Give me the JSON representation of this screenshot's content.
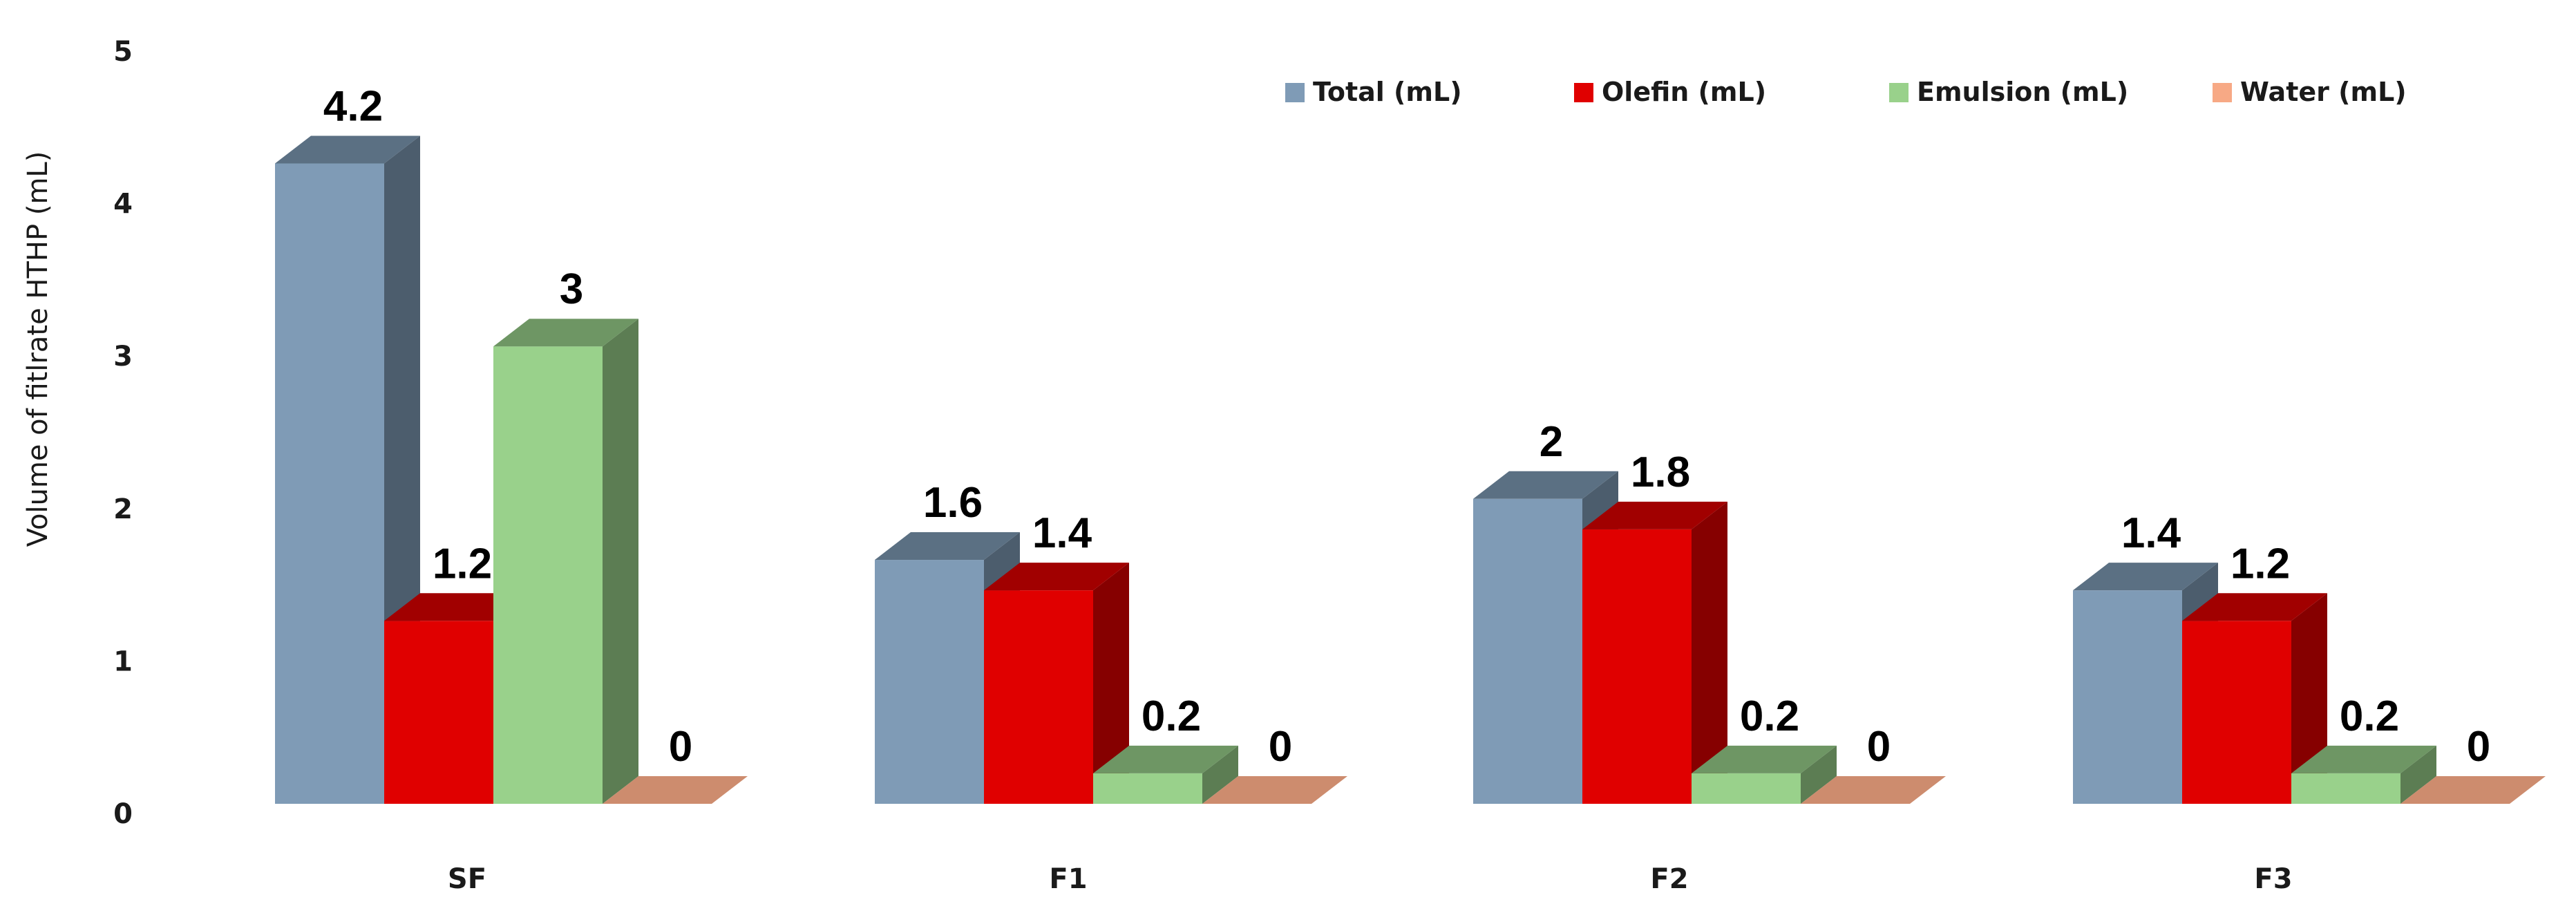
{
  "chart_data": {
    "type": "bar",
    "style": "3d-clustered-column",
    "categories": [
      "SF",
      "F1",
      "F2",
      "F3"
    ],
    "ylabel": "Volume of fitlrate HTHP (mL)",
    "xlabel": "",
    "ylim": [
      0,
      5
    ],
    "yticks": [
      "0",
      "1",
      "2",
      "3",
      "4",
      "5"
    ],
    "grid": false,
    "legend_position": "top-right",
    "series": [
      {
        "name": "Total (mL)",
        "values": [
          4.2,
          1.6,
          2,
          1.4
        ],
        "labels": [
          "4.2",
          "1.6",
          "2",
          "1.4"
        ],
        "color": "#7f9bb6"
      },
      {
        "name": "Olefin (mL)",
        "values": [
          1.2,
          1.4,
          1.8,
          1.2
        ],
        "labels": [
          "1.2",
          "1.4",
          "1.8",
          "1.2"
        ],
        "color": "#e00000"
      },
      {
        "name": "Emulsion (mL)",
        "values": [
          3,
          0.2,
          0.2,
          0.2
        ],
        "labels": [
          "3",
          "0.2",
          "0.2",
          "0.2"
        ],
        "color": "#99d18b"
      },
      {
        "name": "Water (mL)",
        "values": [
          0,
          0,
          0,
          0
        ],
        "labels": [
          "0",
          "0",
          "0",
          "0"
        ],
        "color": "#f7a985"
      }
    ]
  }
}
